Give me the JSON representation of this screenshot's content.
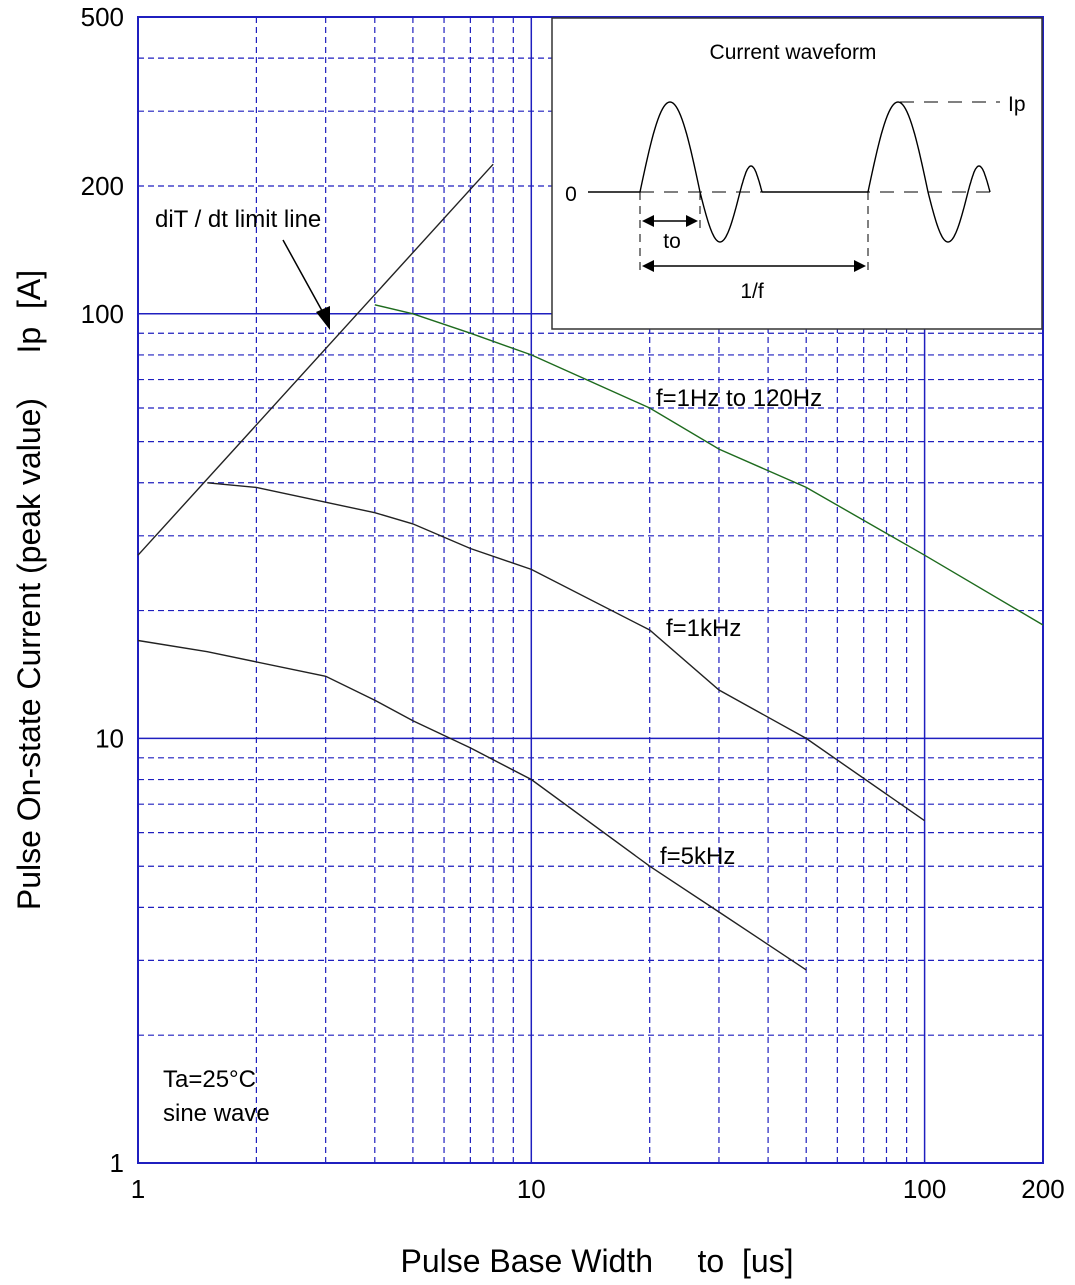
{
  "chart_data": {
    "type": "line",
    "title": "",
    "xlabel": "Pulse Base Width     to  [us]",
    "ylabel": "Pulse On-state Current (peak value)     Ip  [A]",
    "xscale": "log",
    "yscale": "log",
    "xlim": [
      1,
      200
    ],
    "ylim": [
      1,
      500
    ],
    "grid": true,
    "x_ticks": [
      {
        "value": 1,
        "label": "1"
      },
      {
        "value": 10,
        "label": "10"
      },
      {
        "value": 100,
        "label": "100"
      },
      {
        "value": 200,
        "label": "200"
      }
    ],
    "y_ticks": [
      {
        "value": 1,
        "label": "1"
      },
      {
        "value": 10,
        "label": "10"
      },
      {
        "value": 100,
        "label": "100"
      },
      {
        "value": 200,
        "label": "200"
      },
      {
        "value": 500,
        "label": "500"
      }
    ],
    "series": [
      {
        "name": "f=1Hz to 120Hz",
        "color": "#1e6b1e",
        "points": [
          [
            4,
            105
          ],
          [
            5,
            100
          ],
          [
            7,
            90
          ],
          [
            10,
            80
          ],
          [
            20,
            60
          ],
          [
            30,
            48
          ],
          [
            50,
            39
          ],
          [
            100,
            27
          ],
          [
            200,
            18.5
          ]
        ]
      },
      {
        "name": "f=1kHz",
        "color": "#222222",
        "points": [
          [
            1.5,
            40
          ],
          [
            2,
            39
          ],
          [
            4,
            34
          ],
          [
            5,
            32
          ],
          [
            7,
            28
          ],
          [
            10,
            25
          ],
          [
            20,
            18
          ],
          [
            30,
            13
          ],
          [
            50,
            10
          ],
          [
            100,
            6.4
          ]
        ]
      },
      {
        "name": "f=5kHz",
        "color": "#222222",
        "points": [
          [
            1,
            17
          ],
          [
            1.5,
            16
          ],
          [
            3,
            14
          ],
          [
            4,
            12.3
          ],
          [
            5,
            11
          ],
          [
            7,
            9.5
          ],
          [
            10,
            8
          ],
          [
            20,
            5
          ],
          [
            30,
            3.9
          ],
          [
            50,
            2.85
          ]
        ]
      },
      {
        "name": "diT / dt limit line",
        "color": "#222222",
        "points": [
          [
            1,
            27
          ],
          [
            8,
            225
          ]
        ]
      }
    ],
    "annotations": [
      {
        "text": "diT / dt limit line"
      },
      {
        "text": "f=1Hz to 120Hz"
      },
      {
        "text": "f=1kHz"
      },
      {
        "text": "f=5kHz"
      },
      {
        "text": "Ta=25°C"
      },
      {
        "text": "sine wave"
      }
    ],
    "inset": {
      "title": "Current waveform",
      "zero_label": "0",
      "ip_label": "Ip",
      "to_label": "to",
      "period_label": "1/f"
    },
    "colors": {
      "grid": "#1f1fbf",
      "frame": "#1f1fbf",
      "curve_green": "#1e6b1e",
      "curve_black": "#222222"
    }
  }
}
